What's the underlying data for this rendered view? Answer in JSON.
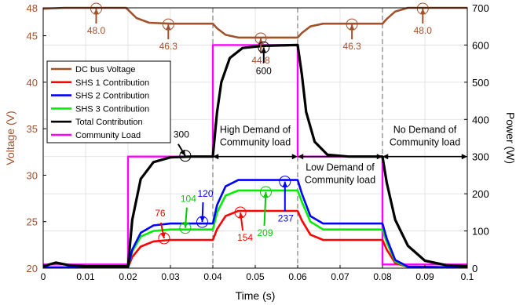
{
  "chart_data": {
    "type": "line",
    "xlabel": "Time (s)",
    "ylabel_left": "Voltage (V)",
    "ylabel_right": "Power (W)",
    "xlim": [
      0,
      0.1
    ],
    "ylim_left": [
      20,
      48
    ],
    "ylim_right": [
      0,
      700
    ],
    "x_ticks": [
      "0",
      "0.01",
      "0.02",
      "0.03",
      "0.04",
      "0.05",
      "0.06",
      "0.07",
      "0.08",
      "0.09",
      "0.1"
    ],
    "left_ticks": [
      "20",
      "25",
      "30",
      "35",
      "40",
      "45",
      "48"
    ],
    "right_ticks": [
      "0",
      "100",
      "200",
      "300",
      "400",
      "500",
      "600",
      "700"
    ],
    "grid": true,
    "legend_position": "left",
    "series": [
      {
        "name": "DC bus Voltage",
        "axis": "left",
        "color": "#a0522d",
        "x": [
          0,
          0.005,
          0.0195,
          0.02,
          0.022,
          0.025,
          0.03,
          0.04,
          0.041,
          0.043,
          0.046,
          0.06,
          0.061,
          0.063,
          0.066,
          0.08,
          0.081,
          0.083,
          0.086,
          0.1
        ],
        "y": [
          47.9,
          48.0,
          48.0,
          47.8,
          46.9,
          46.4,
          46.3,
          46.3,
          45.8,
          45.1,
          44.8,
          44.8,
          45.3,
          46.0,
          46.3,
          46.3,
          46.8,
          47.6,
          48.0,
          48.0
        ]
      },
      {
        "name": "SHS 1 Contribution",
        "axis": "right",
        "color": "#ff0000",
        "x": [
          0,
          0.02,
          0.021,
          0.023,
          0.026,
          0.03,
          0.04,
          0.041,
          0.043,
          0.046,
          0.06,
          0.061,
          0.063,
          0.066,
          0.08,
          0.081,
          0.083,
          0.086,
          0.1
        ],
        "y": [
          2,
          2,
          30,
          58,
          72,
          76,
          76,
          105,
          140,
          154,
          154,
          128,
          90,
          76,
          76,
          50,
          14,
          3,
          2
        ]
      },
      {
        "name": "SHS 2 Contribution",
        "axis": "right",
        "color": "#0000ff",
        "x": [
          0,
          0.02,
          0.021,
          0.023,
          0.026,
          0.03,
          0.04,
          0.041,
          0.043,
          0.046,
          0.06,
          0.061,
          0.063,
          0.066,
          0.08,
          0.081,
          0.083,
          0.086,
          0.1
        ],
        "y": [
          2,
          2,
          50,
          95,
          115,
          120,
          120,
          170,
          220,
          237,
          237,
          200,
          140,
          120,
          120,
          80,
          22,
          4,
          2
        ]
      },
      {
        "name": "SHS 3 Contribution",
        "axis": "right",
        "color": "#00ee00",
        "x": [
          0,
          0.02,
          0.021,
          0.023,
          0.026,
          0.03,
          0.04,
          0.041,
          0.043,
          0.046,
          0.06,
          0.061,
          0.063,
          0.066,
          0.08,
          0.081,
          0.083,
          0.086,
          0.1
        ],
        "y": [
          2,
          2,
          45,
          85,
          100,
          104,
          104,
          150,
          195,
          209,
          209,
          178,
          125,
          104,
          104,
          70,
          18,
          3,
          2
        ]
      },
      {
        "name": "Total Contribution",
        "axis": "right",
        "color": "#000000",
        "x": [
          0,
          0.003,
          0.006,
          0.01,
          0.02,
          0.021,
          0.023,
          0.026,
          0.03,
          0.035,
          0.04,
          0.041,
          0.042,
          0.044,
          0.047,
          0.052,
          0.06,
          0.061,
          0.062,
          0.064,
          0.067,
          0.072,
          0.08,
          0.081,
          0.083,
          0.086,
          0.09,
          0.095,
          0.1
        ],
        "y": [
          5,
          15,
          8,
          5,
          5,
          130,
          240,
          285,
          298,
          300,
          300,
          420,
          500,
          565,
          592,
          598,
          600,
          520,
          420,
          340,
          305,
          300,
          300,
          230,
          130,
          60,
          20,
          8,
          5
        ]
      },
      {
        "name": "Community Load",
        "axis": "right",
        "color": "#ff00ff",
        "x": [
          0,
          0.02,
          0.02,
          0.04,
          0.04,
          0.06,
          0.06,
          0.08,
          0.08,
          0.1
        ],
        "y": [
          10,
          10,
          300,
          300,
          600,
          600,
          300,
          300,
          10,
          10
        ]
      }
    ],
    "annotations": {
      "voltage_values": [
        "48.0",
        "46.3",
        "44.8",
        "46.3",
        "48.0"
      ],
      "total_values": [
        "300",
        "600"
      ],
      "shs1_values": [
        "76",
        "154"
      ],
      "shs2_values": [
        "120",
        "237"
      ],
      "shs3_values": [
        "104",
        "209"
      ],
      "regions": [
        "High Demand of Community load",
        "Low Demand of Community load",
        "No Demand of Community load"
      ]
    }
  }
}
